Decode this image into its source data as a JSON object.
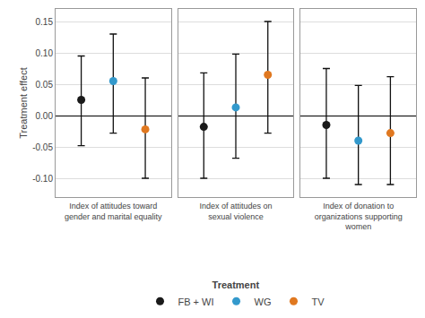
{
  "chart_data": [
    {
      "type": "scatter",
      "xlabel": "Index of attitudes toward\ngender and marital equality",
      "ylabel": "Treatment effect",
      "legend": "bottom",
      "legend_title": "Treatment",
      "grid": true,
      "tick_labels": "y",
      "ylim": [
        -0.13,
        0.17
      ],
      "yticks": [
        {
          "value": -0.1,
          "label": "-0.10"
        },
        -0.05,
        {
          "value": 0.0,
          "label": "0.00"
        },
        0.05,
        {
          "value": 0.1,
          "label": "0.10"
        },
        0.15
      ],
      "series": [
        {
          "name": "FB + WI",
          "color": "#1a1a1a",
          "values": [
            0.025
          ],
          "error_low": [
            -0.048
          ],
          "error_high": [
            0.095
          ]
        },
        {
          "name": "WG",
          "color": "#3399cc",
          "values": [
            0.055
          ],
          "error_low": [
            -0.028
          ],
          "error_high": [
            0.13
          ]
        },
        {
          "name": "TV",
          "color": "#e07820",
          "values": [
            -0.022
          ],
          "error_low": [
            -0.1
          ],
          "error_high": [
            0.06
          ]
        }
      ]
    },
    {
      "type": "scatter",
      "xlabel": "Index of attitudes on\nsexual violence",
      "grid": true,
      "tick_labels": false,
      "ylim": [
        -0.13,
        0.17
      ],
      "yticks": [
        {
          "value": -0.1,
          "label": "-0.10"
        },
        -0.05,
        {
          "value": 0.0,
          "label": "0.00"
        },
        0.05,
        {
          "value": 0.1,
          "label": "0.10"
        },
        0.15
      ],
      "series": [
        {
          "name": "FB + WI",
          "color": "#1a1a1a",
          "values": [
            -0.018
          ],
          "error_low": [
            -0.1
          ],
          "error_high": [
            0.068
          ]
        },
        {
          "name": "WG",
          "color": "#3399cc",
          "values": [
            0.013
          ],
          "error_low": [
            -0.068
          ],
          "error_high": [
            0.098
          ]
        },
        {
          "name": "TV",
          "color": "#e07820",
          "values": [
            0.065
          ],
          "error_low": [
            -0.028
          ],
          "error_high": [
            0.15
          ]
        }
      ]
    },
    {
      "type": "scatter",
      "xlabel": "Index of donation to\norganizations supporting\nwomen",
      "grid": true,
      "tick_labels": false,
      "ylim": [
        -0.13,
        0.17
      ],
      "yticks": [
        {
          "value": -0.1,
          "label": "-0.10"
        },
        -0.05,
        {
          "value": 0.0,
          "label": "0.00"
        },
        0.05,
        {
          "value": 0.1,
          "label": "0.10"
        },
        0.15
      ],
      "series": [
        {
          "name": "FB + WI",
          "color": "#1a1a1a",
          "values": [
            -0.015
          ],
          "error_low": [
            -0.1
          ],
          "error_high": [
            0.075
          ]
        },
        {
          "name": "WG",
          "color": "#3399cc",
          "values": [
            -0.04
          ],
          "error_low": [
            -0.11
          ],
          "error_high": [
            0.048
          ]
        },
        {
          "name": "TV",
          "color": "#e07820",
          "values": [
            -0.028
          ],
          "error_low": [
            -0.11
          ],
          "error_high": [
            0.062
          ]
        }
      ]
    }
  ]
}
